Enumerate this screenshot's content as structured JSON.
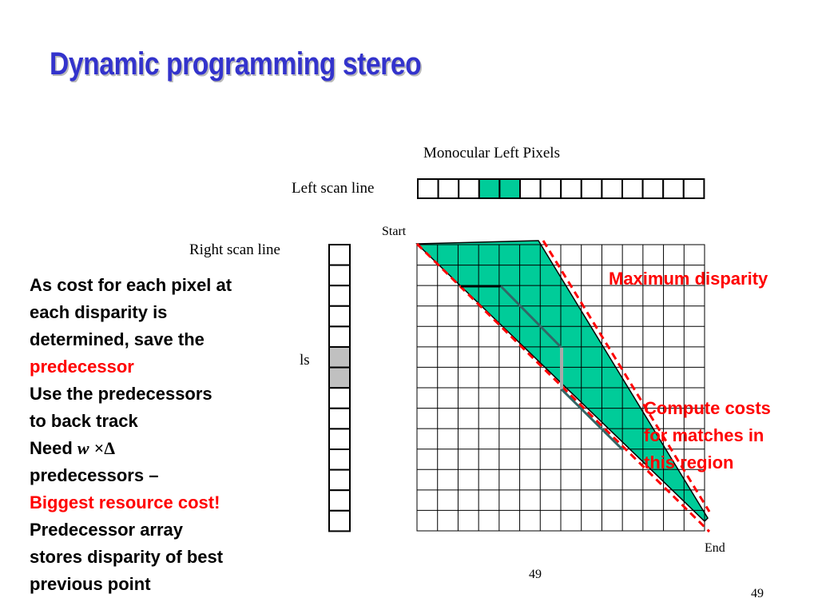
{
  "slide": {
    "title": "Dynamic programming stereo",
    "page_number_a": "49",
    "page_number_b": "49"
  },
  "diagram": {
    "monocular_label": "Monocular Left Pixels",
    "left_scan_label": "Left scan line",
    "right_scan_label": "Right scan line",
    "ls_label": "ls",
    "start_label": "Start",
    "end_label": "End",
    "max_disparity_label": "Maximum disparity",
    "compute_costs_lines": [
      "Compute costs",
      "for matches in",
      "this region"
    ],
    "left_cells": 14,
    "left_highlight_cells": [
      3,
      4
    ],
    "right_cells": 14,
    "right_highlight_cells": [
      5,
      6
    ],
    "grid_cols": 14,
    "grid_rows": 14,
    "colors": {
      "region_fill": "#00cc99",
      "highlight_green": "#00cc99",
      "highlight_gray": "#c0c0c0",
      "dashed_red": "#ff0000",
      "path_dark": "#336666",
      "path_gray": "#999999"
    }
  },
  "bullets": {
    "b1_line1": "As cost for each pixel at",
    "b1_line2": "each disparity is",
    "b1_line3": "determined, save the",
    "b1_line4_red": "predecessor",
    "b2_line1": "Use the predecessors",
    "b2_line2": "to back track",
    "b3_prefix": "Need",
    "b3_w": "w",
    "b3_times": "×",
    "b3_delta": "Δ",
    "b3_line2": "predecessors –",
    "b3_line3_red": "Biggest resource cost!",
    "b4_line1": "Predecessor array",
    "b4_line2": "stores disparity of best",
    "b4_line3": "previous point"
  }
}
